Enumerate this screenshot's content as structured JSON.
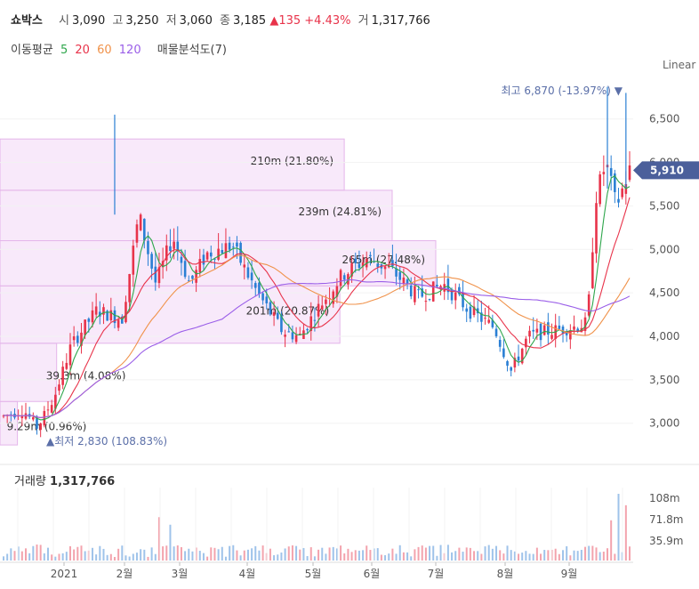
{
  "header": {
    "name": "쇼박스",
    "open_label": "시",
    "open": "3,090",
    "high_label": "고",
    "high": "3,250",
    "low_label": "저",
    "low": "3,060",
    "close_label": "종",
    "close": "3,185",
    "change": "▲135 +4.43%",
    "volume_label": "거",
    "volume": "1,317,766"
  },
  "ma_legend": {
    "label": "이동평균",
    "ma5": "5",
    "ma20": "20",
    "ma60": "60",
    "ma120": "120",
    "vp_label": "매물분석도(7)"
  },
  "scale_mode": "Linear",
  "colors": {
    "up": "#e8334a",
    "down": "#2a7fd4",
    "ma5": "#2ea64b",
    "ma20": "#e8334a",
    "ma60": "#f0924a",
    "ma120": "#9a5ee8",
    "volume_profile": "#f2d7f5",
    "price_tag": "#4b5f9b"
  },
  "chart_data": {
    "type": "candlestick",
    "y_ticks": [
      "3,000",
      "3,500",
      "4,000",
      "4,500",
      "5,000",
      "5,500",
      "6,000",
      "6,500"
    ],
    "y_range": [
      2700,
      7050
    ],
    "x_labels": [
      "2021",
      "2월",
      "3월",
      "4월",
      "5월",
      "6월",
      "7월",
      "8월",
      "9월"
    ],
    "current_price": "5,910",
    "high_annotation": "최고 6,870 (-13.97%) ▼",
    "low_annotation": "▲최저 2,830 (108.83%)",
    "volume_profile": [
      {
        "label": "9.29m (0.96%)",
        "low": 2750,
        "high": 3250,
        "fraction": 0.04
      },
      {
        "label": "39.3m (4.08%)",
        "low": 3250,
        "high": 3920,
        "fraction": 0.13
      },
      {
        "label": "201m (20.87%)",
        "low": 3920,
        "high": 4580,
        "fraction": 0.78
      },
      {
        "label": "265m (27.48%)",
        "low": 4580,
        "high": 5100,
        "fraction": 1.0
      },
      {
        "label": "239m (24.81%)",
        "low": 5100,
        "high": 5680,
        "fraction": 0.9
      },
      {
        "label": "210m (21.80%)",
        "low": 5680,
        "high": 6270,
        "fraction": 0.79
      }
    ],
    "volume_title": "거래량",
    "volume_value": "1,317,766",
    "volume_ticks": [
      "108m",
      "71.8m",
      "35.9m"
    ]
  }
}
